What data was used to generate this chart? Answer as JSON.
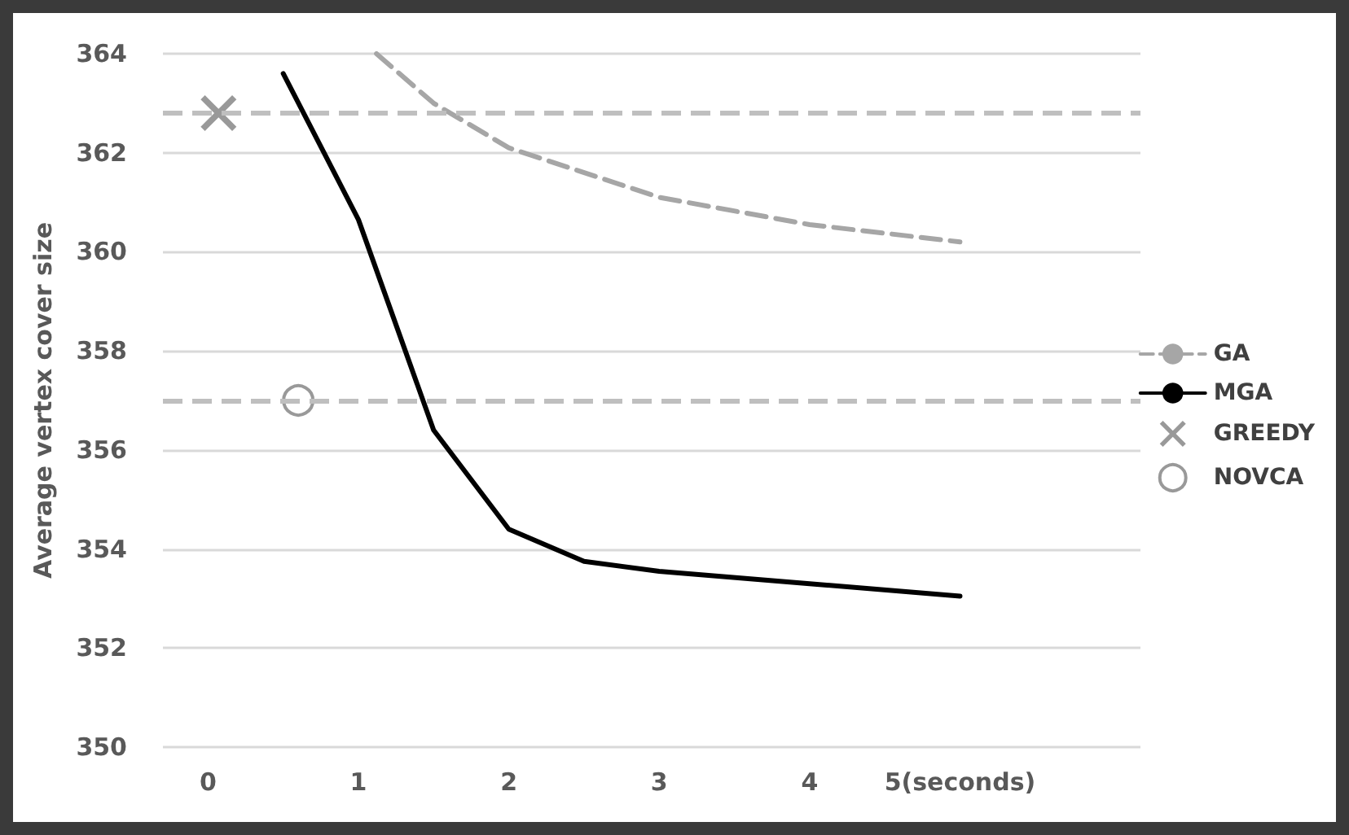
{
  "chart_data": {
    "type": "line",
    "ylabel": "Average vertex cover size",
    "xlim": [
      -0.3,
      6.2
    ],
    "xticks": [
      0,
      1,
      2,
      3,
      4,
      {
        "value": 5,
        "label": "5(seconds)"
      }
    ],
    "ylim": [
      350,
      364
    ],
    "yticks": [
      350,
      352,
      354,
      356,
      358,
      360,
      362,
      364
    ],
    "grid": "y",
    "legend": "right",
    "series": [
      {
        "name": "GA",
        "color": "#a6a6a6",
        "line_style": "dashed",
        "marker": "none",
        "x": [
          1.12,
          1.5,
          2,
          3,
          4,
          5
        ],
        "values": [
          364,
          363.0,
          362.1,
          361.1,
          360.55,
          360.2
        ]
      },
      {
        "name": "MGA",
        "color": "#000000",
        "line_style": "solid",
        "marker": "none",
        "x": [
          0.5,
          1,
          1.5,
          2,
          2.5,
          3,
          4,
          5
        ],
        "values": [
          363.6,
          360.65,
          356.4,
          354.4,
          353.75,
          353.55,
          353.3,
          353.05
        ]
      },
      {
        "name": "GREEDY",
        "type": "scatter",
        "color": "#7f7f7f",
        "marker": "cross",
        "x": [
          0.07
        ],
        "values": [
          362.8
        ]
      },
      {
        "name": "NOVCA",
        "type": "scatter",
        "color": "#7f7f7f",
        "marker": "circle",
        "x": [
          0.6
        ],
        "values": [
          357
        ]
      }
    ],
    "ref_lines": [
      {
        "axis": "y",
        "value": 362.8,
        "color": "#bfbfbf",
        "line_style": "dashed"
      },
      {
        "axis": "y",
        "value": 357,
        "color": "#bfbfbf",
        "line_style": "dashed"
      }
    ]
  }
}
